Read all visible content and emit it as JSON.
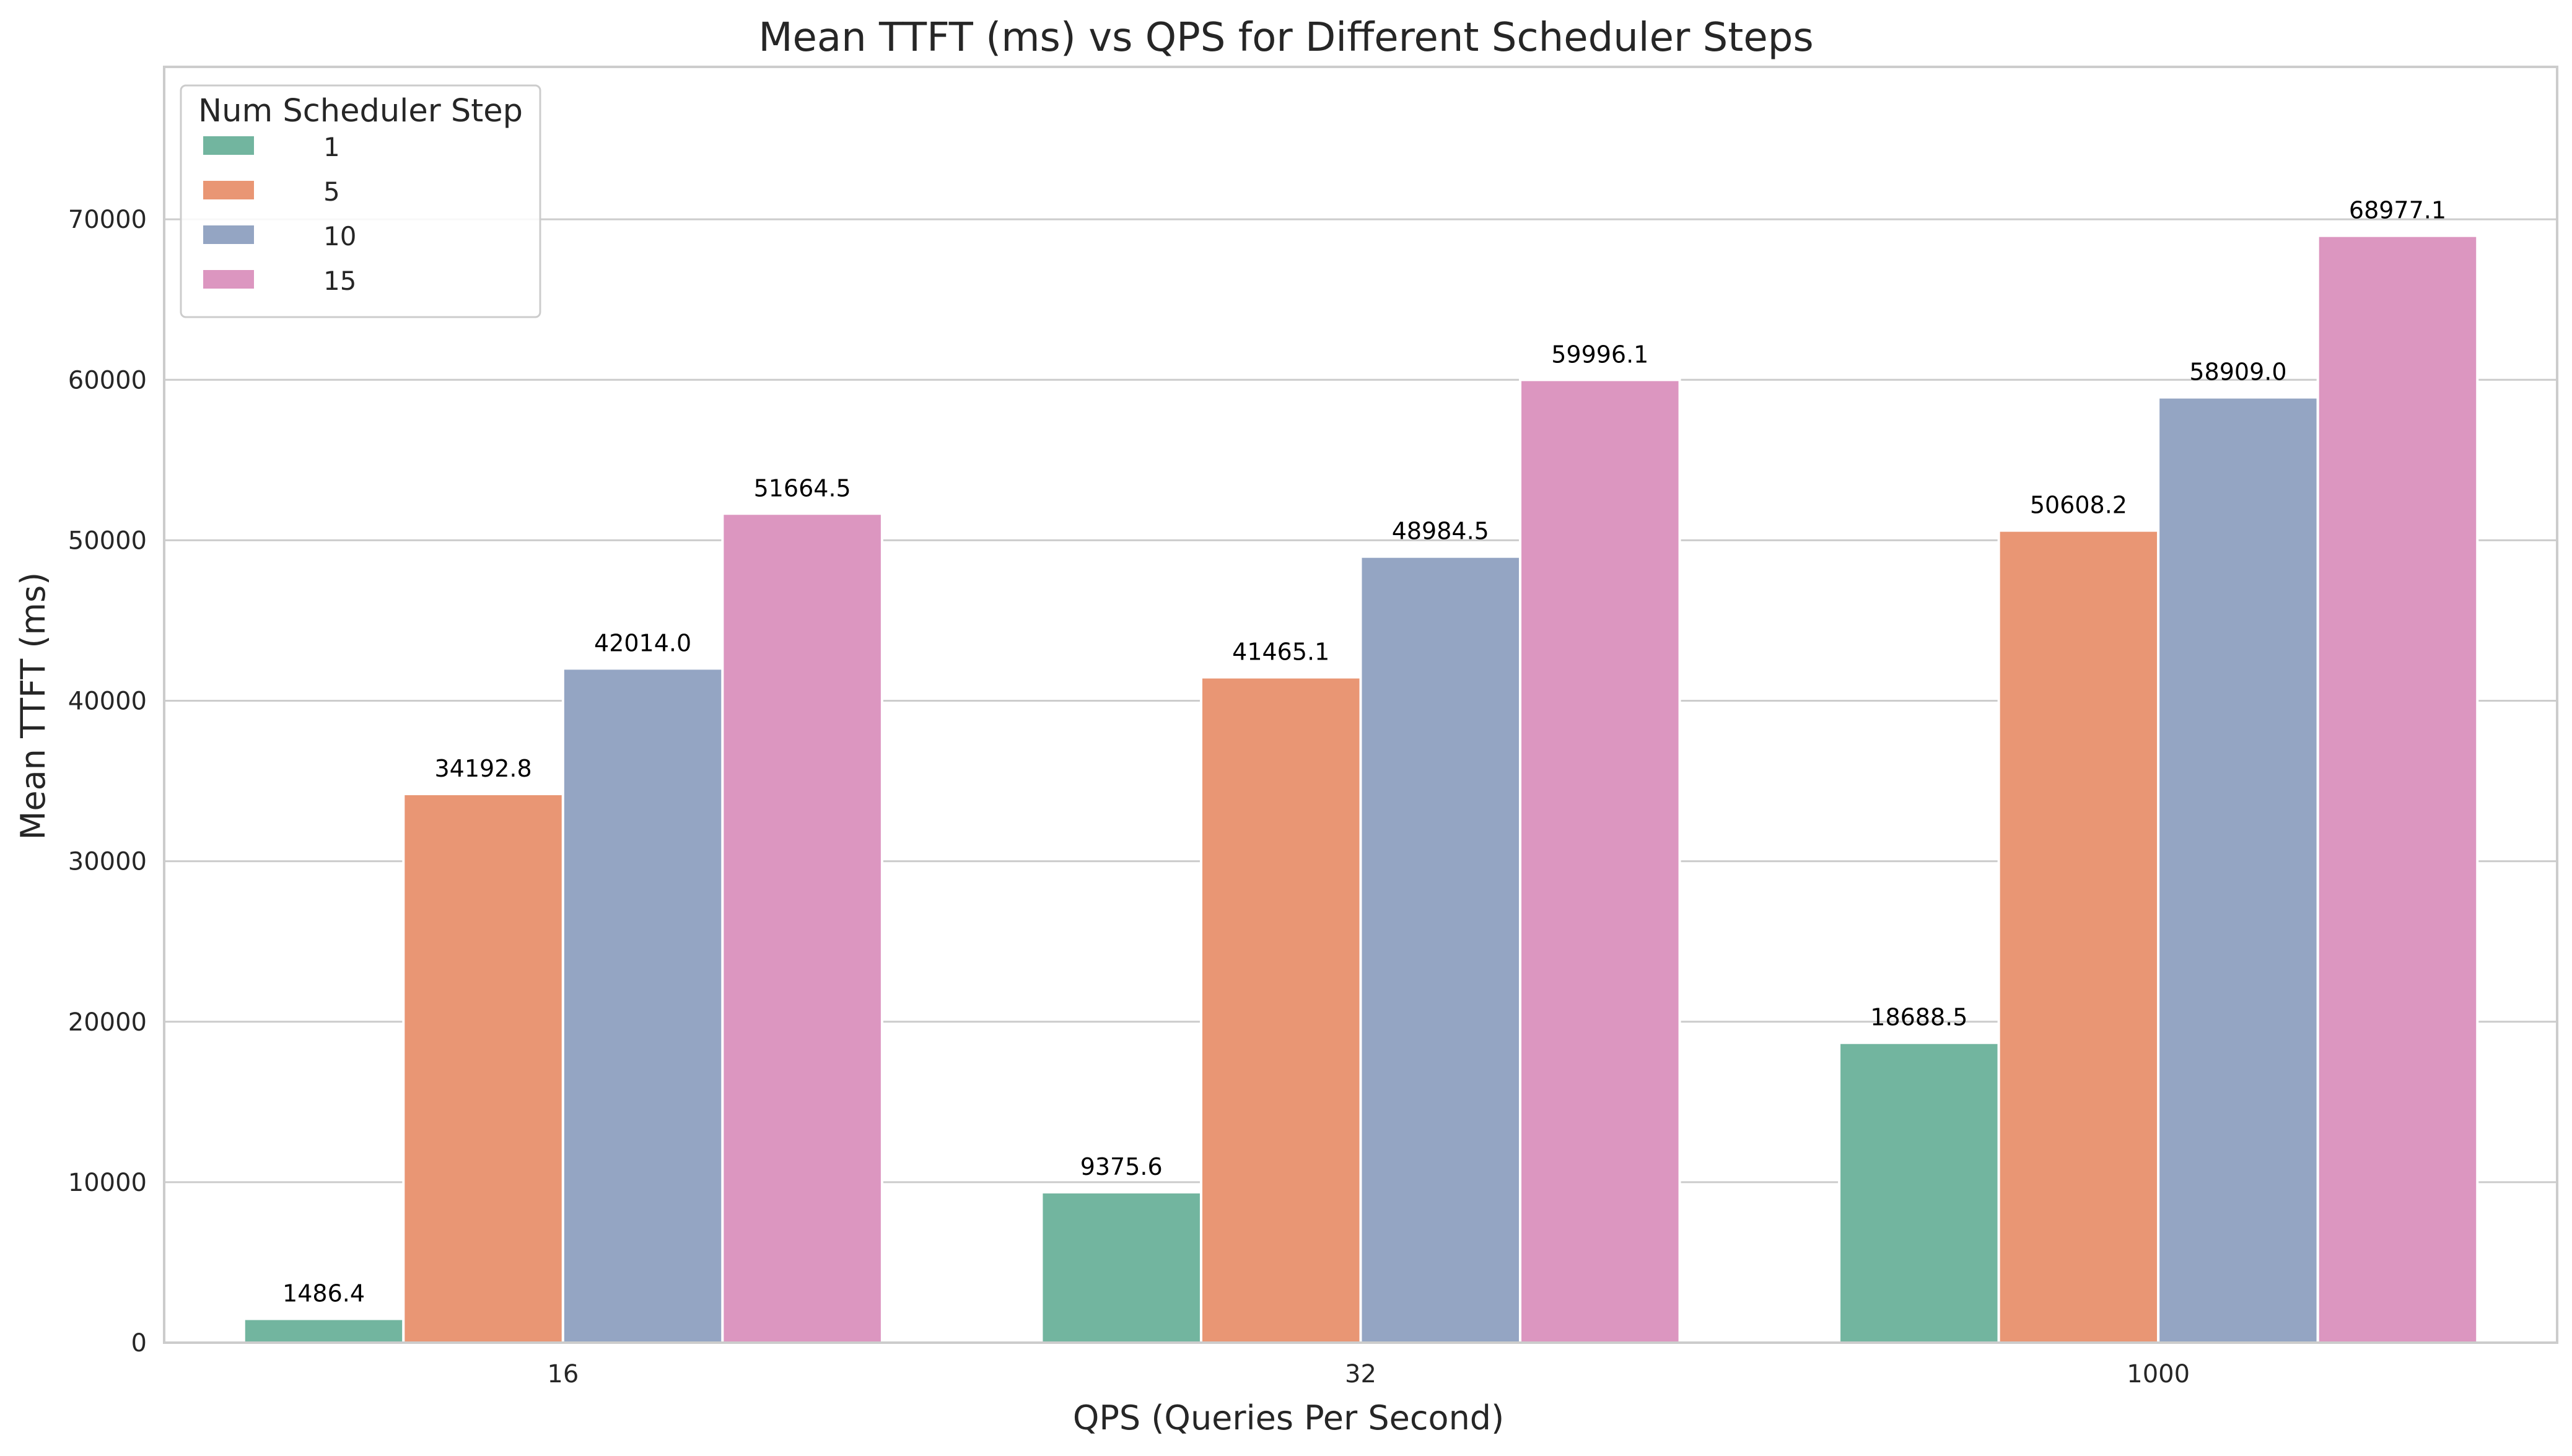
{
  "chart_data": {
    "type": "bar",
    "title": "Mean TTFT (ms) vs QPS for Different Scheduler Steps",
    "xlabel": "QPS (Queries Per Second)",
    "ylabel": "Mean TTFT (ms)",
    "categories": [
      "16",
      "32",
      "1000"
    ],
    "ylim": [
      0,
      79500
    ],
    "yticks": [
      0,
      10000,
      20000,
      30000,
      40000,
      50000,
      60000,
      70000
    ],
    "grid": "y",
    "legend": {
      "title": "Num Scheduler Step",
      "placement": "top-left"
    },
    "series": [
      {
        "name": "1",
        "color": "#72b59f",
        "values": [
          1486.4,
          9375.6,
          18688.5
        ],
        "labels": [
          "1486.4",
          "9375.6",
          "18688.5"
        ]
      },
      {
        "name": "5",
        "color": "#e99674",
        "values": [
          34192.8,
          41465.1,
          50608.2
        ],
        "labels": [
          "34192.8",
          "41465.1",
          "50608.2"
        ]
      },
      {
        "name": "10",
        "color": "#94a5c3",
        "values": [
          42014.0,
          48984.5,
          58909.0
        ],
        "labels": [
          "42014.0",
          "48984.5",
          "58909.0"
        ]
      },
      {
        "name": "15",
        "color": "#dc96c0",
        "values": [
          51664.5,
          59996.1,
          68977.1
        ],
        "labels": [
          "51664.5",
          "59996.1",
          "68977.1"
        ]
      }
    ]
  }
}
